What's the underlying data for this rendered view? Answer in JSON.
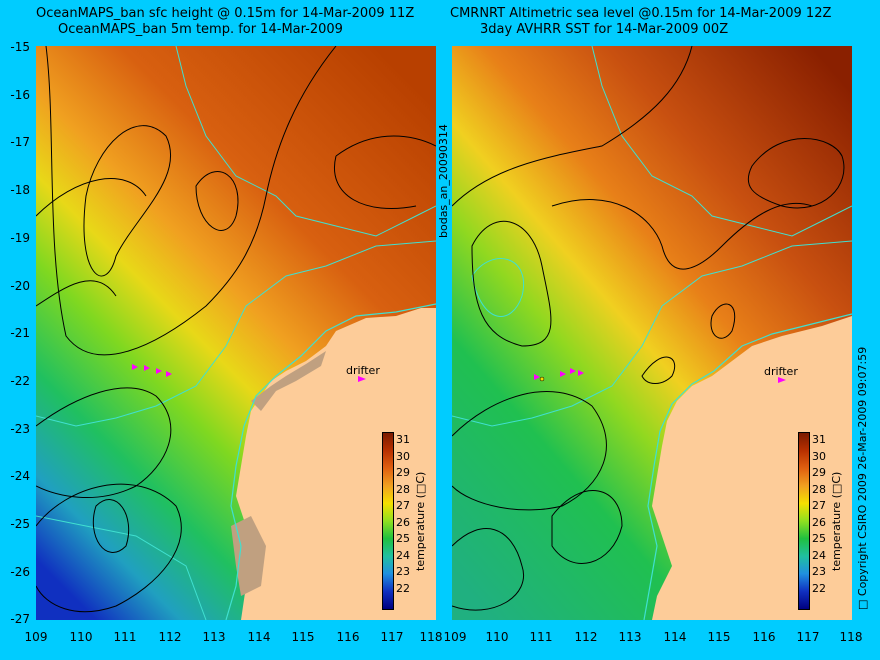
{
  "left_panel": {
    "title_line1": "OceanMAPS_ban sfc height @ 0.15m for 14-Mar-2009 11Z",
    "title_line2": "OceanMAPS_ban 5m temp. for 14-Mar-2009"
  },
  "right_panel": {
    "title_line1": "CMRNRT Altimetric sea level  @0.15m  for 14-Mar-2009 12Z",
    "title_line2": "3day AVHRR SST for 14-Mar-2009 00Z"
  },
  "middle_label": "bodas_an_20090314",
  "right_side_label": "□ Copyright CSIRO 2009   26-Mar-2009 09:07:59",
  "drifter_label": "drifter",
  "latitude_ticks": [
    "-15",
    "-16",
    "-17",
    "-18",
    "-19",
    "-20",
    "-21",
    "-22",
    "-23",
    "-24",
    "-25",
    "-26",
    "-27"
  ],
  "longitude_ticks": [
    "109",
    "110",
    "111",
    "112",
    "113",
    "114",
    "115",
    "116",
    "117",
    "118"
  ],
  "colorbar": {
    "label": "temperature (□C)",
    "ticks": [
      "31",
      "30",
      "29",
      "28",
      "27",
      "26",
      "25",
      "24",
      "23",
      "22"
    ],
    "colors": [
      "#7a1a00",
      "#b83000",
      "#e06010",
      "#f0a020",
      "#f5e000",
      "#90e020",
      "#20c040",
      "#20c0a0",
      "#2090e0",
      "#1030c0",
      "#000080"
    ]
  },
  "colors": {
    "background": "#00ccff",
    "land": "#fdcc99",
    "contour_line": "#000000",
    "coast_outline": "#40e0d0",
    "drifter_marker": "#ff00ff"
  }
}
